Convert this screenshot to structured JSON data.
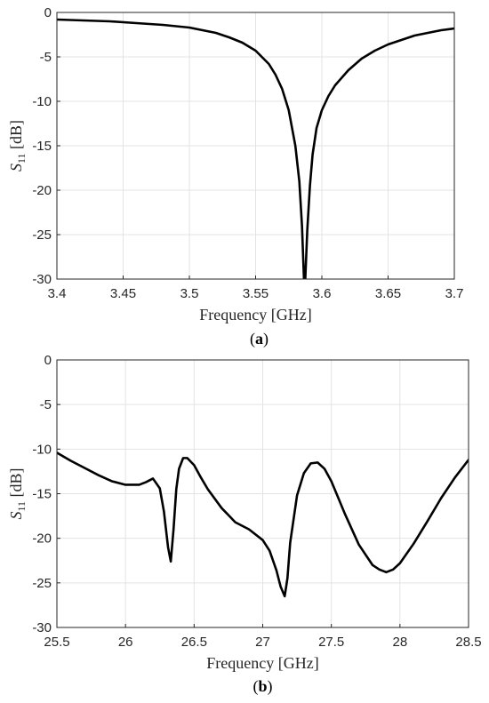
{
  "chart_data": [
    {
      "type": "line",
      "panel_label": "a",
      "xlabel": "Frequency [GHz]",
      "ylabel_main": "S",
      "ylabel_sub": "11",
      "ylabel_unit": " [dB]",
      "xlim": [
        3.4,
        3.7
      ],
      "ylim": [
        -30,
        0
      ],
      "xticks": [
        "3.4",
        "3.45",
        "3.5",
        "3.55",
        "3.6",
        "3.65",
        "3.7"
      ],
      "yticks": [
        "0",
        "-5",
        "-10",
        "-15",
        "-20",
        "-25",
        "-30"
      ],
      "grid": true,
      "series": [
        {
          "x": [
            3.4,
            3.42,
            3.44,
            3.46,
            3.48,
            3.5,
            3.51,
            3.52,
            3.53,
            3.54,
            3.55,
            3.56,
            3.565,
            3.57,
            3.575,
            3.58,
            3.583,
            3.585,
            3.5865,
            3.5875,
            3.589,
            3.591,
            3.593,
            3.596,
            3.6,
            3.605,
            3.61,
            3.62,
            3.63,
            3.64,
            3.65,
            3.66,
            3.67,
            3.68,
            3.69,
            3.7
          ],
          "y": [
            -0.8,
            -0.9,
            -1.0,
            -1.2,
            -1.4,
            -1.7,
            -2.0,
            -2.3,
            -2.8,
            -3.4,
            -4.3,
            -5.8,
            -7.0,
            -8.6,
            -11.0,
            -15.0,
            -19.0,
            -24.0,
            -30.0,
            -30.0,
            -24.5,
            -19.5,
            -16.0,
            -13.0,
            -11.0,
            -9.4,
            -8.2,
            -6.5,
            -5.2,
            -4.3,
            -3.6,
            -3.1,
            -2.6,
            -2.3,
            -2.0,
            -1.8
          ]
        }
      ]
    },
    {
      "type": "line",
      "panel_label": "b",
      "xlabel": "Frequency [GHz]",
      "ylabel_main": "S",
      "ylabel_sub": "11",
      "ylabel_unit": " [dB]",
      "xlim": [
        25.5,
        28.5
      ],
      "ylim": [
        -30,
        0
      ],
      "xticks": [
        "25.5",
        "26",
        "26.5",
        "27",
        "27.5",
        "28",
        "28.5"
      ],
      "yticks": [
        "0",
        "-5",
        "-10",
        "-15",
        "-20",
        "-25",
        "-30"
      ],
      "grid": true,
      "series": [
        {
          "x": [
            25.5,
            25.6,
            25.7,
            25.8,
            25.9,
            26.0,
            26.1,
            26.15,
            26.2,
            26.25,
            26.28,
            26.31,
            26.33,
            26.35,
            26.37,
            26.39,
            26.42,
            26.45,
            26.5,
            26.55,
            26.6,
            26.7,
            26.8,
            26.9,
            27.0,
            27.05,
            27.1,
            27.13,
            27.16,
            27.18,
            27.2,
            27.25,
            27.3,
            27.35,
            27.4,
            27.45,
            27.5,
            27.6,
            27.7,
            27.8,
            27.85,
            27.9,
            27.95,
            28.0,
            28.1,
            28.2,
            28.3,
            28.4,
            28.5
          ],
          "y": [
            -10.4,
            -11.3,
            -12.1,
            -12.9,
            -13.6,
            -14.0,
            -14.0,
            -13.7,
            -13.3,
            -14.4,
            -17.0,
            -21.0,
            -22.6,
            -19.0,
            -14.5,
            -12.2,
            -11.0,
            -11.0,
            -11.8,
            -13.2,
            -14.5,
            -16.6,
            -18.2,
            -19.0,
            -20.2,
            -21.4,
            -23.6,
            -25.4,
            -26.5,
            -24.5,
            -20.5,
            -15.2,
            -12.7,
            -11.6,
            -11.5,
            -12.2,
            -13.6,
            -17.3,
            -20.7,
            -23.0,
            -23.5,
            -23.8,
            -23.5,
            -22.8,
            -20.6,
            -18.1,
            -15.5,
            -13.2,
            -11.2
          ]
        }
      ]
    }
  ]
}
